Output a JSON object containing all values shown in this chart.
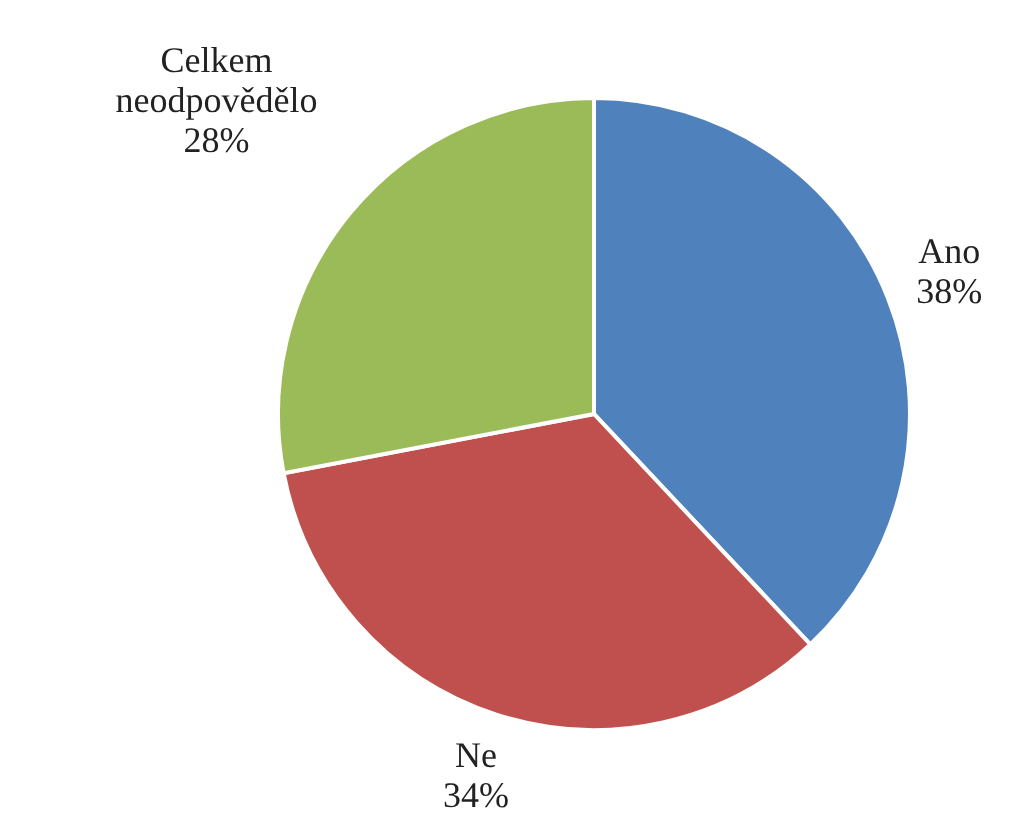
{
  "chart_data": {
    "type": "pie",
    "categories": [
      "Ano",
      "Ne",
      "Celkem neodpovědělo"
    ],
    "values": [
      38,
      34,
      28
    ],
    "value_labels": [
      "38%",
      "34%",
      "28%"
    ],
    "colors": [
      "#4f81bd",
      "#c0504d",
      "#9bbb59"
    ]
  }
}
